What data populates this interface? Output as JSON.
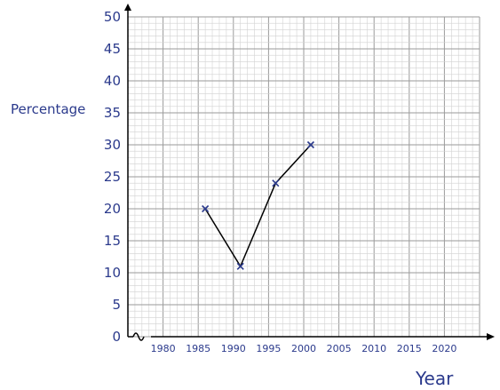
{
  "chart_data": {
    "type": "line",
    "ylabel": "Percentage",
    "xlabel": "Year",
    "x_ticks": [
      "1980",
      "1985",
      "1990",
      "1995",
      "2000",
      "2005",
      "2010",
      "2015",
      "2020"
    ],
    "y_ticks": [
      "0",
      "5",
      "10",
      "15",
      "20",
      "25",
      "30",
      "35",
      "40",
      "45",
      "50"
    ],
    "xlim": [
      1975,
      2025
    ],
    "ylim": [
      0,
      50
    ],
    "axis_break": "x-axis",
    "grid": "major and minor",
    "series": [
      {
        "marker": "x",
        "points": [
          {
            "x": 1986,
            "y": 20
          },
          {
            "x": 1991,
            "y": 11
          },
          {
            "x": 1996,
            "y": 24
          },
          {
            "x": 2001,
            "y": 30
          }
        ]
      }
    ],
    "colors": {
      "text": "#2b3a8c",
      "marker": "#2b3a8c",
      "line": "#000000",
      "grid_major": "#9a9a9a",
      "grid_minor": "#d2d2d2",
      "axis": "#000000"
    }
  }
}
